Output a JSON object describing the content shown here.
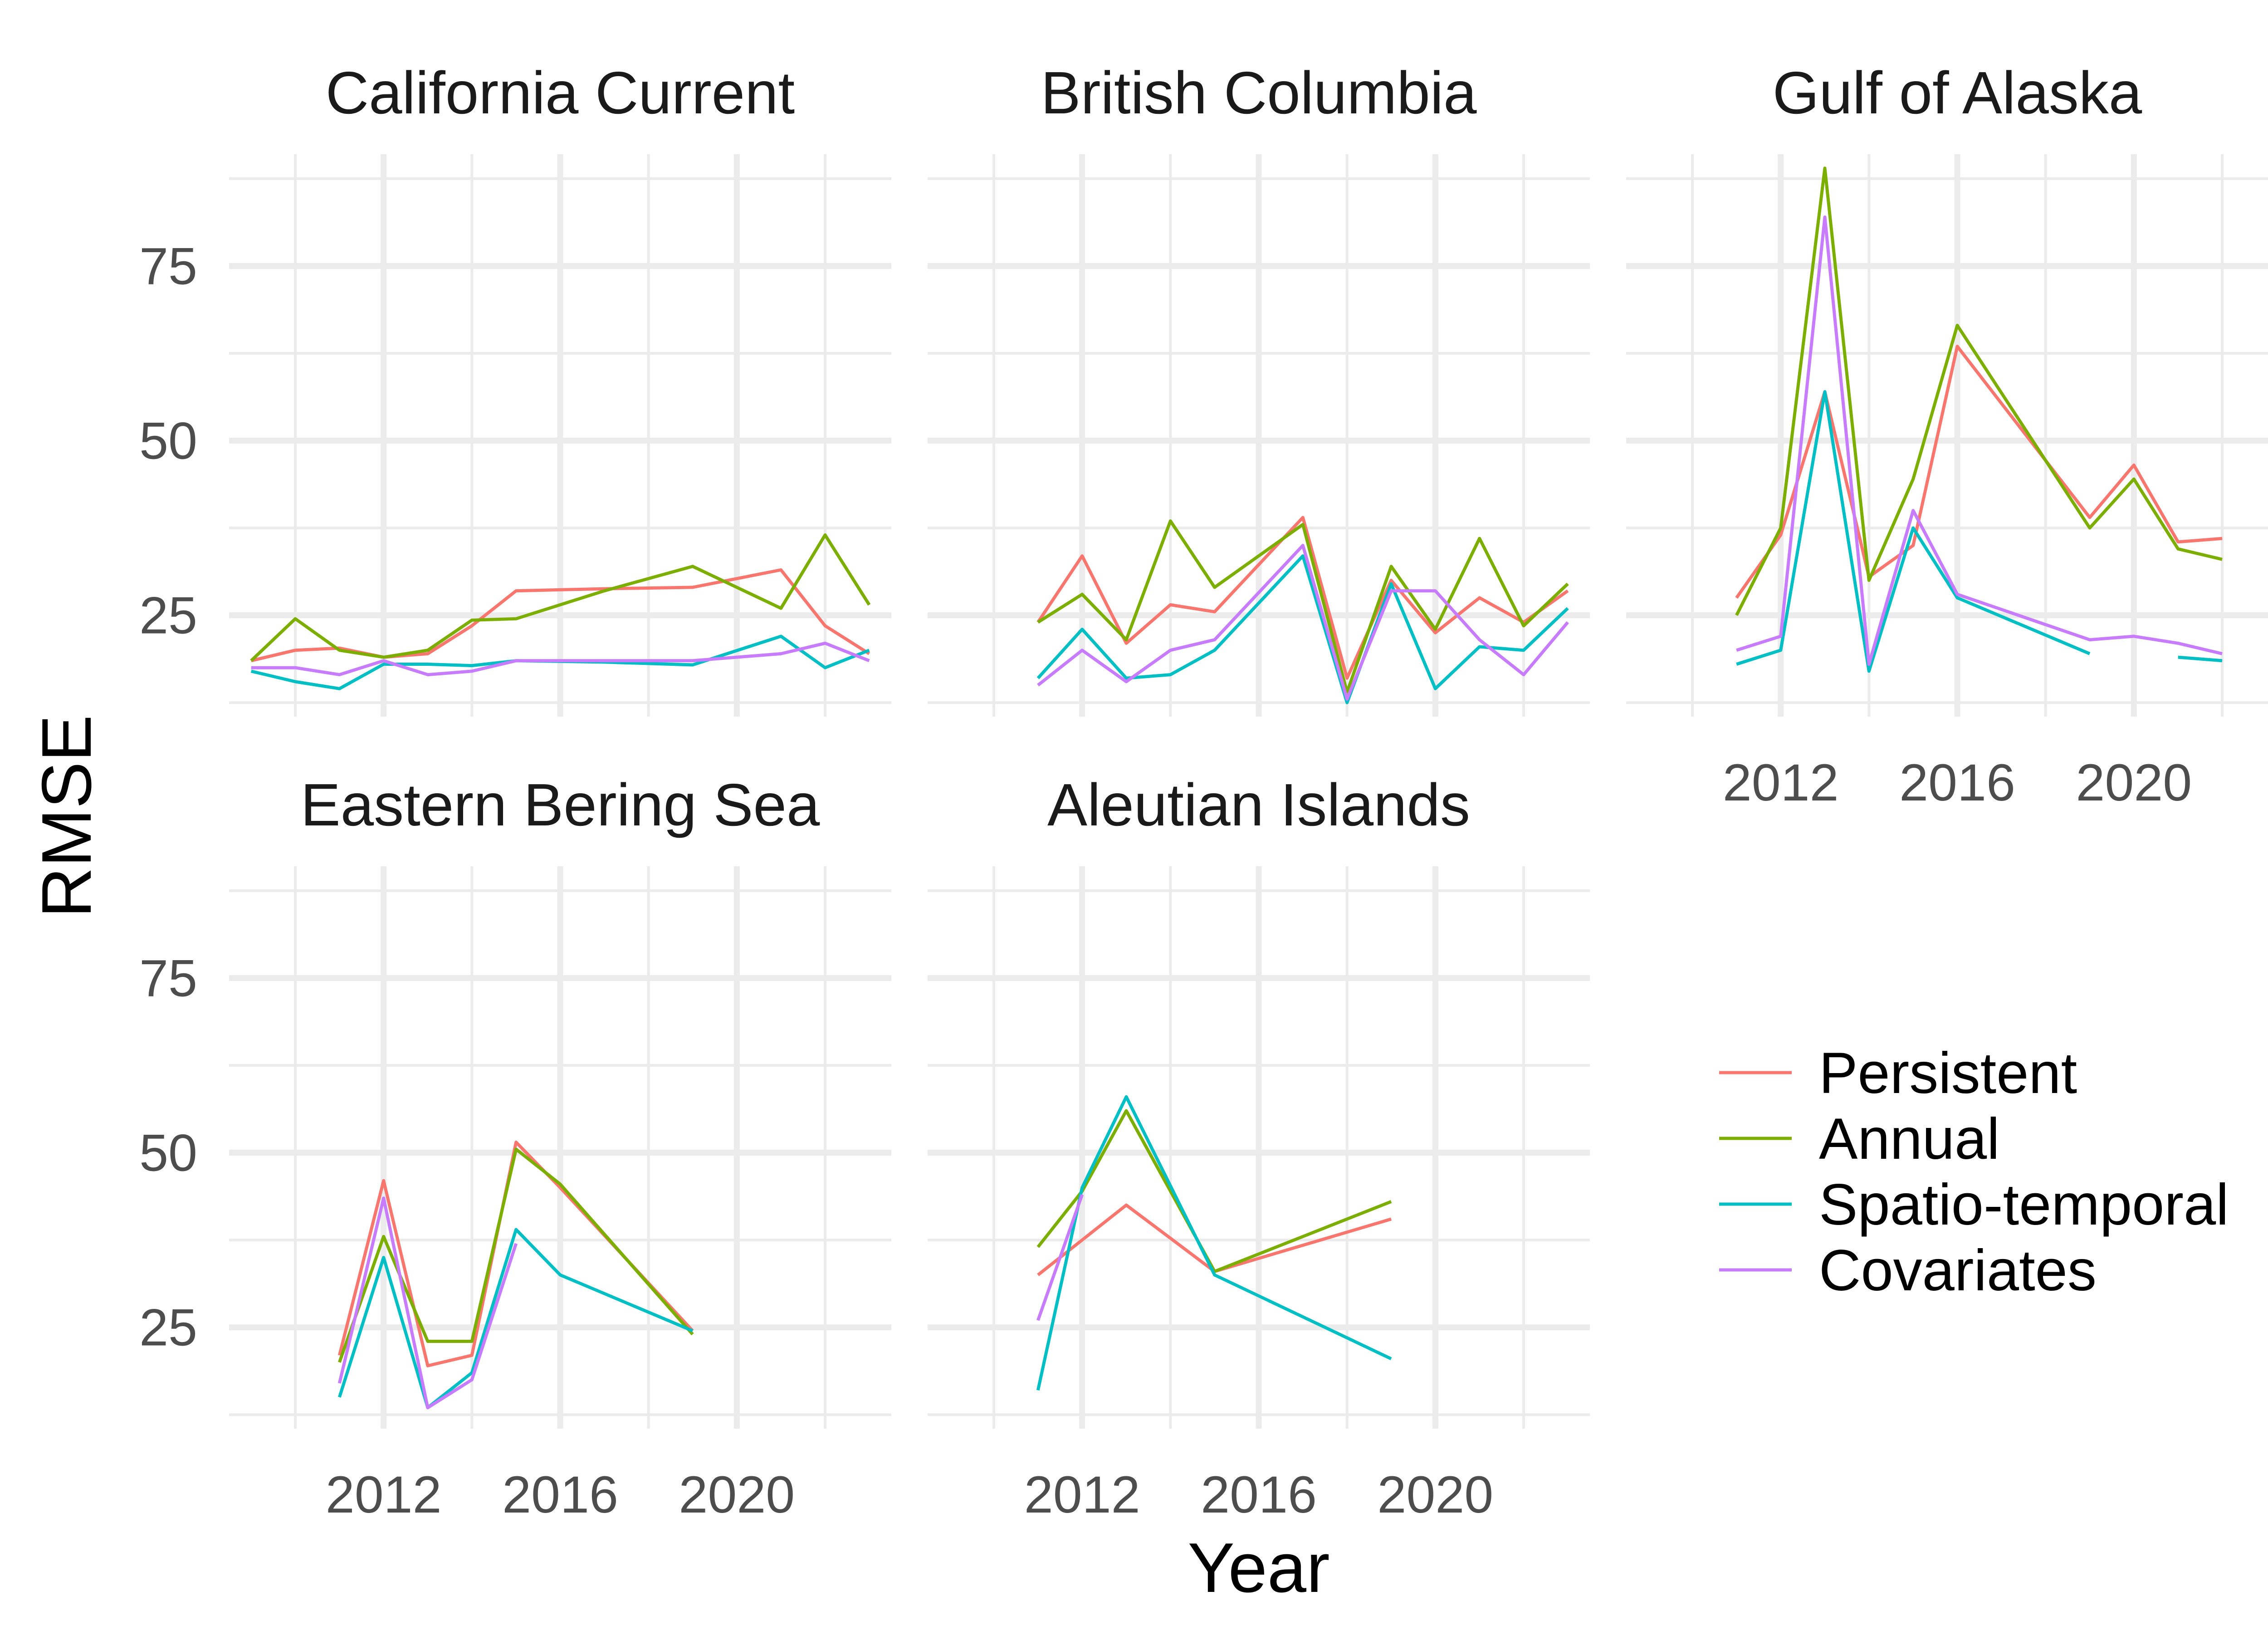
{
  "chart_data": {
    "type": "line",
    "xlabel": "Year",
    "ylabel": "RMSE",
    "xlim": [
      2008.5,
      2023.5
    ],
    "ylim": [
      10.5,
      91
    ],
    "xticks": [
      2012,
      2016,
      2020
    ],
    "yticks": [
      25,
      50,
      75
    ],
    "grid": true,
    "legend_position": "right",
    "series_names": [
      "Persistent",
      "Annual",
      "Spatio-temporal",
      "Covariates"
    ],
    "colors": {
      "Persistent": "#F8766D",
      "Annual": "#7CAE00",
      "Spatio-temporal": "#00BFC4",
      "Covariates": "#C77CFF"
    },
    "panels": [
      {
        "title": "California Current",
        "show_y_ticks": true,
        "show_x_ticks": false,
        "series": [
          {
            "name": "Persistent",
            "x": [
              2009,
              2010,
              2011,
              2012,
              2013,
              2014,
              2015,
              2017,
              2019,
              2021,
              2022,
              2023
            ],
            "y": [
              18.5,
              20,
              20.3,
              19,
              19.5,
              23.5,
              28.5,
              28.8,
              29,
              31.5,
              23.5,
              19.5
            ]
          },
          {
            "name": "Annual",
            "x": [
              2009,
              2010,
              2011,
              2012,
              2013,
              2014,
              2015,
              2017,
              2019,
              2021,
              2022,
              2023
            ],
            "y": [
              18.5,
              24.5,
              20,
              19,
              20,
              24.3,
              24.5,
              28.5,
              32,
              26,
              36.5,
              26.5
            ]
          },
          {
            "name": "Spatio-temporal",
            "x": [
              2009,
              2010,
              2011,
              2012,
              2013,
              2014,
              2015,
              2017,
              2019,
              2021,
              2022,
              2023
            ],
            "y": [
              17,
              15.5,
              14.5,
              18,
              18,
              17.8,
              18.5,
              18.3,
              17.9,
              22,
              17.5,
              20
            ]
          },
          {
            "name": "Covariates",
            "x": [
              2009,
              2010,
              2011,
              2012,
              2013,
              2014,
              2015,
              2017,
              2019,
              2021,
              2022,
              2023
            ],
            "y": [
              17.5,
              17.5,
              16.5,
              18.5,
              16.5,
              17,
              18.5,
              18.5,
              18.5,
              19.5,
              21,
              18.5
            ]
          }
        ]
      },
      {
        "title": "British Columbia",
        "show_y_ticks": false,
        "show_x_ticks": false,
        "series": [
          {
            "name": "Persistent",
            "x": [
              2011,
              2012,
              2013,
              2014,
              2015,
              2017,
              2018,
              2019,
              2020,
              2021,
              2022,
              2023
            ],
            "y": [
              24,
              33.5,
              21,
              26.5,
              25.5,
              39,
              16,
              30,
              22.5,
              27.5,
              24,
              28.5
            ]
          },
          {
            "name": "Annual",
            "x": [
              2011,
              2012,
              2013,
              2014,
              2015,
              2017,
              2018,
              2019,
              2020,
              2021,
              2022,
              2023
            ],
            "y": [
              24,
              28,
              21.5,
              38.5,
              29,
              38,
              14,
              32,
              23,
              36,
              23.5,
              29.5
            ]
          },
          {
            "name": "Spatio-temporal",
            "x": [
              2011,
              2012,
              2013,
              2014,
              2015,
              2017,
              2018,
              2019,
              2020,
              2021,
              2022,
              2023
            ],
            "y": [
              16,
              23,
              16,
              16.5,
              20,
              33.5,
              12.5,
              29.5,
              14.5,
              20.5,
              20,
              26
            ]
          },
          {
            "name": "Covariates",
            "x": [
              2011,
              2012,
              2013,
              2014,
              2015,
              2017,
              2018,
              2019,
              2020,
              2021,
              2022,
              2023
            ],
            "y": [
              15,
              20,
              15.5,
              20,
              21.5,
              35,
              13,
              28.5,
              28.5,
              21.5,
              16.5,
              24
            ]
          }
        ]
      },
      {
        "title": "Gulf of Alaska",
        "show_y_ticks": false,
        "show_x_ticks": true,
        "series": [
          {
            "name": "Persistent",
            "x": [
              2011,
              2012,
              2013,
              2014,
              2015,
              2016,
              2019,
              2020,
              2021,
              2022
            ],
            "y": [
              27.5,
              36.5,
              57,
              30.5,
              35,
              63.5,
              39,
              46.5,
              35.5,
              36
            ]
          },
          {
            "name": "Annual",
            "x": [
              2011,
              2012,
              2013,
              2014,
              2015,
              2016,
              2019,
              2020,
              2021,
              2022
            ],
            "y": [
              25,
              37.5,
              89,
              30,
              44.5,
              66.5,
              37.5,
              44.5,
              34.5,
              33
            ]
          },
          {
            "name": "Spatio-temporal",
            "x": [
              2011,
              2012,
              2013,
              2014,
              2015,
              2016,
              2019
            ],
            "y": [
              18,
              20,
              57,
              17,
              37.5,
              27.5,
              19.5
            ]
          },
          {
            "name": "Spatio-temporal",
            "x": [
              2021,
              2022
            ],
            "y": [
              19,
              18.5
            ]
          },
          {
            "name": "Covariates",
            "x": [
              2011,
              2012,
              2013,
              2014,
              2015,
              2016,
              2019,
              2020,
              2021,
              2022
            ],
            "y": [
              20,
              22,
              82,
              18,
              40,
              28,
              21.5,
              22,
              21,
              19.5
            ]
          }
        ]
      },
      {
        "title": "Eastern Bering Sea",
        "show_y_ticks": true,
        "show_x_ticks": true,
        "series": [
          {
            "name": "Persistent",
            "x": [
              2011,
              2012,
              2013,
              2014,
              2015,
              2016,
              2019
            ],
            "y": [
              21,
              46,
              19.5,
              21,
              51.5,
              45,
              24.5
            ]
          },
          {
            "name": "Annual",
            "x": [
              2011,
              2012,
              2013,
              2014,
              2015,
              2016,
              2019
            ],
            "y": [
              20,
              38,
              23,
              23,
              50.5,
              45.5,
              24
            ]
          },
          {
            "name": "Spatio-temporal",
            "x": [
              2011,
              2012,
              2013,
              2014,
              2015,
              2016,
              2019
            ],
            "y": [
              15,
              35,
              13.5,
              18.5,
              39,
              32.5,
              24.5
            ]
          },
          {
            "name": "Covariates",
            "x": [
              2011,
              2012,
              2013,
              2014,
              2015
            ],
            "y": [
              17,
              43.5,
              13.5,
              17.5,
              37
            ]
          }
        ]
      },
      {
        "title": "Aleutian Islands",
        "show_y_ticks": false,
        "show_x_ticks": true,
        "series": [
          {
            "name": "Persistent",
            "x": [
              2011,
              2013,
              2015,
              2019
            ],
            "y": [
              32.5,
              42.5,
              33,
              40.5
            ]
          },
          {
            "name": "Annual",
            "x": [
              2011,
              2012,
              2013,
              2015,
              2019
            ],
            "y": [
              36.5,
              44.5,
              56,
              33,
              43
            ]
          },
          {
            "name": "Spatio-temporal",
            "x": [
              2011,
              2012,
              2013,
              2015,
              2019
            ],
            "y": [
              16,
              45,
              58,
              32.5,
              20.5
            ]
          },
          {
            "name": "Covariates",
            "x": [
              2011,
              2012
            ],
            "y": [
              26,
              44
            ]
          }
        ]
      }
    ]
  }
}
